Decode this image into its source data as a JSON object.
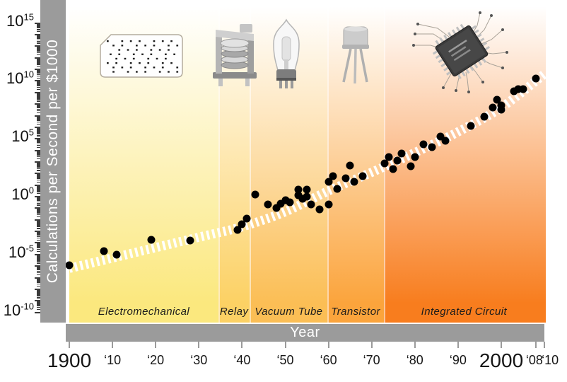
{
  "y_axis": {
    "label": "Calculations per Second per $1000",
    "labeled_exponents": [
      15,
      10,
      5,
      0,
      -5,
      -10
    ],
    "scale": "log10",
    "log_range": [
      -10,
      15
    ]
  },
  "x_axis": {
    "label": "Year",
    "range": [
      1900,
      2010
    ],
    "ticks": [
      {
        "year": 1900,
        "text": "1900",
        "size": "large",
        "dx": 0
      },
      {
        "year": 1910,
        "text": "‘10",
        "size": "small",
        "dx": 0
      },
      {
        "year": 1920,
        "text": "‘20",
        "size": "small",
        "dx": 0
      },
      {
        "year": 1930,
        "text": "‘30",
        "size": "small",
        "dx": 0
      },
      {
        "year": 1940,
        "text": "‘40",
        "size": "small",
        "dx": 0
      },
      {
        "year": 1950,
        "text": "‘50",
        "size": "small",
        "dx": 0
      },
      {
        "year": 1960,
        "text": "‘60",
        "size": "small",
        "dx": 0
      },
      {
        "year": 1970,
        "text": "‘70",
        "size": "small",
        "dx": 0
      },
      {
        "year": 1980,
        "text": "‘80",
        "size": "small",
        "dx": 0
      },
      {
        "year": 1990,
        "text": "‘90",
        "size": "small",
        "dx": 0
      },
      {
        "year": 2000,
        "text": "2000",
        "size": "large",
        "dx": 0
      },
      {
        "year": 2008,
        "text": "‘08",
        "size": "small",
        "dx": -2
      },
      {
        "year": 2010,
        "text": "‘10",
        "size": "small",
        "dx": 8
      }
    ]
  },
  "eras": [
    {
      "name": "Electromechanical",
      "start_year": 1900,
      "end_year": 1934.5,
      "color": "#FBE87E",
      "icon": "punched-card-icon"
    },
    {
      "name": "Relay",
      "start_year": 1934.5,
      "end_year": 1941.8,
      "color": "#FCD164",
      "icon": "relay-icon"
    },
    {
      "name": "Vacuum Tube",
      "start_year": 1941.8,
      "end_year": 1959.8,
      "color": "#FBBE55",
      "icon": "vacuum-tube-icon"
    },
    {
      "name": "Transistor",
      "start_year": 1959.8,
      "end_year": 1972.8,
      "color": "#FBA43C",
      "icon": "transistor-icon"
    },
    {
      "name": "Integrated Circuit",
      "start_year": 1972.8,
      "end_year": 2010,
      "color": "#F87D1E",
      "icon": "integrated-circuit-icon"
    }
  ],
  "chart_data": {
    "type": "scatter",
    "title": "",
    "xlabel": "Year",
    "ylabel": "Calculations per Second per $1000",
    "x_range": [
      1900,
      2010
    ],
    "y_scale": "log",
    "y_log10_range": [
      -10,
      15
    ],
    "grid": false,
    "legend": "none",
    "points_year_log10cps": [
      [
        1900,
        -5.9
      ],
      [
        1908,
        -4.7
      ],
      [
        1911,
        -5.0
      ],
      [
        1919,
        -3.7
      ],
      [
        1928,
        -3.8
      ],
      [
        1939,
        -2.9
      ],
      [
        1940,
        -2.4
      ],
      [
        1941,
        -1.9
      ],
      [
        1943,
        0.2
      ],
      [
        1946,
        -0.7
      ],
      [
        1948,
        -1.0
      ],
      [
        1949,
        -0.6
      ],
      [
        1950,
        -0.3
      ],
      [
        1951,
        -0.5
      ],
      [
        1953,
        0.6
      ],
      [
        1953,
        0.1
      ],
      [
        1954,
        -0.2
      ],
      [
        1955,
        0.6
      ],
      [
        1955,
        0.0
      ],
      [
        1956,
        -0.7
      ],
      [
        1958,
        -1.1
      ],
      [
        1960,
        -0.7
      ],
      [
        1960,
        1.3
      ],
      [
        1961,
        1.8
      ],
      [
        1962,
        0.7
      ],
      [
        1964,
        1.6
      ],
      [
        1965,
        2.7
      ],
      [
        1966,
        1.3
      ],
      [
        1968,
        1.8
      ],
      [
        1973,
        2.9
      ],
      [
        1974,
        3.4
      ],
      [
        1975,
        2.4
      ],
      [
        1976,
        3.1
      ],
      [
        1977,
        3.7
      ],
      [
        1979,
        2.6
      ],
      [
        1980,
        3.4
      ],
      [
        1982,
        4.5
      ],
      [
        1984,
        4.3
      ],
      [
        1986,
        5.2
      ],
      [
        1987,
        4.8
      ],
      [
        1993,
        6.1
      ],
      [
        1996,
        6.9
      ],
      [
        1998,
        7.7
      ],
      [
        1999,
        8.4
      ],
      [
        2000,
        7.9
      ],
      [
        2000,
        7.5
      ],
      [
        2003,
        9.1
      ],
      [
        2004,
        9.3
      ],
      [
        2005,
        9.3
      ],
      [
        2008,
        10.2
      ]
    ],
    "trend_band_year_log10cps": [
      [
        1900,
        -6.2
      ],
      [
        1910,
        -5.3
      ],
      [
        1920,
        -4.4
      ],
      [
        1930,
        -3.5
      ],
      [
        1940,
        -2.6
      ],
      [
        1950,
        -1.3
      ],
      [
        1960,
        0.5
      ],
      [
        1970,
        2.1
      ],
      [
        1980,
        3.8
      ],
      [
        1990,
        5.6
      ],
      [
        2000,
        7.7
      ],
      [
        2010,
        10.6
      ]
    ],
    "trend_band_style": "white hatched band",
    "point_color": "#000000"
  },
  "icons": [
    {
      "name": "punched-card-icon",
      "era": "Electromechanical"
    },
    {
      "name": "relay-icon",
      "era": "Relay"
    },
    {
      "name": "vacuum-tube-icon",
      "era": "Vacuum Tube"
    },
    {
      "name": "transistor-icon",
      "era": "Transistor"
    },
    {
      "name": "integrated-circuit-icon",
      "era": "Integrated Circuit"
    }
  ]
}
